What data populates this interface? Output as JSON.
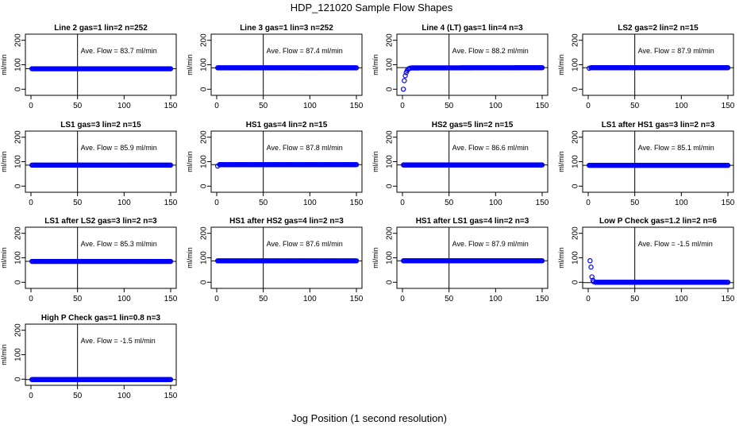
{
  "page": {
    "title": "HDP_121020  Sample Flow Shapes",
    "xlabel": "Jog Position (1 second resolution)"
  },
  "chart_data": [
    {
      "type": "scatter",
      "title": "Line 2 gas=1 lin=2 n=252",
      "ylabel": "ml/min",
      "annotation": "Ave. Flow =  83.7  ml/min",
      "xlim": [
        0,
        150
      ],
      "ylim": [
        -25,
        225
      ],
      "xticks": [
        0,
        50,
        100,
        150
      ],
      "yticks": [
        0,
        100,
        200
      ],
      "xticklabels": [
        "0",
        "50",
        "100",
        "150"
      ],
      "yticklabels": [
        "0",
        "100",
        "200"
      ],
      "vline_x": 50,
      "hline_y": 83.7,
      "series": [
        {
          "points": [
            [
              1,
              83.7
            ],
            [
              150,
              83.7
            ]
          ],
          "color": "#0000ff"
        }
      ]
    },
    {
      "type": "scatter",
      "title": "Line 3 gas=1 lin=3 n=252",
      "ylabel": "ml/min",
      "annotation": "Ave. Flow =  87.4  ml/min",
      "xlim": [
        0,
        150
      ],
      "ylim": [
        -25,
        225
      ],
      "xticks": [
        0,
        50,
        100,
        150
      ],
      "yticks": [
        0,
        100,
        200
      ],
      "xticklabels": [
        "0",
        "50",
        "100",
        "150"
      ],
      "yticklabels": [
        "0",
        "100",
        "200"
      ],
      "vline_x": 50,
      "hline_y": 87.4,
      "series": [
        {
          "points": [
            [
              1,
              87.4
            ],
            [
              150,
              87.4
            ]
          ],
          "color": "#0000ff"
        }
      ]
    },
    {
      "type": "scatter",
      "title": "Line 4 (LT) gas=1 lin=4 n=3",
      "ylabel": "ml/min",
      "annotation": "Ave. Flow =  88.2  ml/min",
      "xlim": [
        0,
        150
      ],
      "ylim": [
        -25,
        225
      ],
      "xticks": [
        0,
        50,
        100,
        150
      ],
      "yticks": [
        0,
        100,
        200
      ],
      "xticklabels": [
        "0",
        "50",
        "100",
        "150"
      ],
      "yticklabels": [
        "0",
        "100",
        "200"
      ],
      "vline_x": 50,
      "hline_y": 88.2,
      "series": [
        {
          "points": [
            [
              1,
              0
            ],
            [
              2,
              35
            ],
            [
              3,
              55
            ],
            [
              4,
              68
            ],
            [
              5,
              76
            ],
            [
              6,
              81
            ],
            [
              7,
              84
            ],
            [
              8,
              86
            ],
            [
              10,
              87
            ],
            [
              150,
              88
            ]
          ],
          "color": "#0000ff"
        }
      ]
    },
    {
      "type": "scatter",
      "title": "LS2 gas=2 lin=2 n=15",
      "ylabel": "ml/min",
      "annotation": "Ave. Flow =  87.9  ml/min",
      "xlim": [
        0,
        150
      ],
      "ylim": [
        -25,
        225
      ],
      "xticks": [
        0,
        50,
        100,
        150
      ],
      "yticks": [
        0,
        100,
        200
      ],
      "xticklabels": [
        "0",
        "50",
        "100",
        "150"
      ],
      "yticklabels": [
        "0",
        "100",
        "200"
      ],
      "vline_x": 50,
      "hline_y": 87.9,
      "series": [
        {
          "points": [
            [
              1,
              86
            ],
            [
              3,
              87.9
            ],
            [
              150,
              87.9
            ]
          ],
          "color": "#0000ff"
        }
      ]
    },
    {
      "type": "scatter",
      "title": "LS1 gas=3 lin=2 n=15",
      "ylabel": "ml/min",
      "annotation": "Ave. Flow =  85.9  ml/min",
      "xlim": [
        0,
        150
      ],
      "ylim": [
        -25,
        225
      ],
      "xticks": [
        0,
        50,
        100,
        150
      ],
      "yticks": [
        0,
        100,
        200
      ],
      "xticklabels": [
        "0",
        "50",
        "100",
        "150"
      ],
      "yticklabels": [
        "0",
        "100",
        "200"
      ],
      "vline_x": 50,
      "hline_y": 85.9,
      "series": [
        {
          "points": [
            [
              1,
              85.9
            ],
            [
              150,
              85.9
            ]
          ],
          "color": "#0000ff"
        }
      ]
    },
    {
      "type": "scatter",
      "title": "HS1 gas=4 lin=2 n=15",
      "ylabel": "ml/min",
      "annotation": "Ave. Flow =  87.8  ml/min",
      "xlim": [
        0,
        150
      ],
      "ylim": [
        -25,
        225
      ],
      "xticks": [
        0,
        50,
        100,
        150
      ],
      "yticks": [
        0,
        100,
        200
      ],
      "xticklabels": [
        "0",
        "50",
        "100",
        "150"
      ],
      "yticklabels": [
        "0",
        "100",
        "200"
      ],
      "vline_x": 50,
      "hline_y": 87.8,
      "series": [
        {
          "points": [
            [
              1,
              82
            ],
            [
              3,
              87.8
            ],
            [
              150,
              87.8
            ]
          ],
          "color": "#0000ff"
        }
      ]
    },
    {
      "type": "scatter",
      "title": "HS2 gas=5 lin=2 n=15",
      "ylabel": "ml/min",
      "annotation": "Ave. Flow =  86.6  ml/min",
      "xlim": [
        0,
        150
      ],
      "ylim": [
        -25,
        225
      ],
      "xticks": [
        0,
        50,
        100,
        150
      ],
      "yticks": [
        0,
        100,
        200
      ],
      "xticklabels": [
        "0",
        "50",
        "100",
        "150"
      ],
      "yticklabels": [
        "0",
        "100",
        "200"
      ],
      "vline_x": 50,
      "hline_y": 86.6,
      "series": [
        {
          "points": [
            [
              1,
              86.6
            ],
            [
              150,
              86.6
            ]
          ],
          "color": "#0000ff"
        }
      ]
    },
    {
      "type": "scatter",
      "title": "LS1 after HS1 gas=3 lin=2 n=3",
      "ylabel": "ml/min",
      "annotation": "Ave. Flow =  85.1  ml/min",
      "xlim": [
        0,
        150
      ],
      "ylim": [
        -25,
        225
      ],
      "xticks": [
        0,
        50,
        100,
        150
      ],
      "yticks": [
        0,
        100,
        200
      ],
      "xticklabels": [
        "0",
        "50",
        "100",
        "150"
      ],
      "yticklabels": [
        "0",
        "100",
        "200"
      ],
      "vline_x": 50,
      "hline_y": 85.1,
      "series": [
        {
          "points": [
            [
              1,
              85.1
            ],
            [
              150,
              85.1
            ]
          ],
          "color": "#0000ff"
        }
      ]
    },
    {
      "type": "scatter",
      "title": "LS1 after LS2 gas=3 lin=2 n=3",
      "ylabel": "ml/min",
      "annotation": "Ave. Flow =  85.3  ml/min",
      "xlim": [
        0,
        150
      ],
      "ylim": [
        -25,
        225
      ],
      "xticks": [
        0,
        50,
        100,
        150
      ],
      "yticks": [
        0,
        100,
        200
      ],
      "xticklabels": [
        "0",
        "50",
        "100",
        "150"
      ],
      "yticklabels": [
        "0",
        "100",
        "200"
      ],
      "vline_x": 50,
      "hline_y": 85.3,
      "series": [
        {
          "points": [
            [
              1,
              85.3
            ],
            [
              150,
              85.3
            ]
          ],
          "color": "#0000ff"
        }
      ]
    },
    {
      "type": "scatter",
      "title": "HS1 after HS2 gas=4 lin=2 n=3",
      "ylabel": "ml/min",
      "annotation": "Ave. Flow =  87.6  ml/min",
      "xlim": [
        0,
        150
      ],
      "ylim": [
        -25,
        225
      ],
      "xticks": [
        0,
        50,
        100,
        150
      ],
      "yticks": [
        0,
        100,
        200
      ],
      "xticklabels": [
        "0",
        "50",
        "100",
        "150"
      ],
      "yticklabels": [
        "0",
        "100",
        "200"
      ],
      "vline_x": 50,
      "hline_y": 87.6,
      "series": [
        {
          "points": [
            [
              1,
              87.6
            ],
            [
              150,
              87.6
            ]
          ],
          "color": "#0000ff"
        }
      ]
    },
    {
      "type": "scatter",
      "title": "HS1 after LS1 gas=4 lin=2 n=3",
      "ylabel": "ml/min",
      "annotation": "Ave. Flow =  87.9  ml/min",
      "xlim": [
        0,
        150
      ],
      "ylim": [
        -25,
        225
      ],
      "xticks": [
        0,
        50,
        100,
        150
      ],
      "yticks": [
        0,
        100,
        200
      ],
      "xticklabels": [
        "0",
        "50",
        "100",
        "150"
      ],
      "yticklabels": [
        "0",
        "100",
        "200"
      ],
      "vline_x": 50,
      "hline_y": 87.9,
      "series": [
        {
          "points": [
            [
              1,
              87.9
            ],
            [
              150,
              87.9
            ]
          ],
          "color": "#0000ff"
        }
      ]
    },
    {
      "type": "scatter",
      "title": "Low P Check gas=1.2 lin=2 n=6",
      "ylabel": "ml/min",
      "annotation": "Ave. Flow =  -1.5  ml/min",
      "xlim": [
        0,
        150
      ],
      "ylim": [
        -25,
        225
      ],
      "xticks": [
        0,
        50,
        100,
        150
      ],
      "yticks": [
        0,
        100,
        200
      ],
      "xticklabels": [
        "0",
        "50",
        "100",
        "150"
      ],
      "yticklabels": [
        "0",
        "100",
        "200"
      ],
      "vline_x": 50,
      "hline_y": -1.5,
      "series": [
        {
          "points": [
            [
              2,
              88
            ],
            [
              3,
              62
            ],
            [
              4,
              22
            ],
            [
              5,
              8
            ],
            [
              6,
              2
            ],
            [
              8,
              0
            ],
            [
              150,
              0
            ]
          ],
          "color": "#0000ff"
        }
      ]
    },
    {
      "type": "scatter",
      "title": "High P Check gas=1 lin=0.8 n=3",
      "ylabel": "ml/min",
      "annotation": "Ave. Flow =  -1.5  ml/min",
      "xlim": [
        0,
        150
      ],
      "ylim": [
        -25,
        225
      ],
      "xticks": [
        0,
        50,
        100,
        150
      ],
      "yticks": [
        0,
        100,
        200
      ],
      "xticklabels": [
        "0",
        "50",
        "100",
        "150"
      ],
      "yticklabels": [
        "0",
        "100",
        "200"
      ],
      "vline_x": 50,
      "hline_y": -1.5,
      "series": [
        {
          "points": [
            [
              1,
              -1.5
            ],
            [
              150,
              -1.5
            ]
          ],
          "color": "#0000ff"
        }
      ]
    }
  ]
}
